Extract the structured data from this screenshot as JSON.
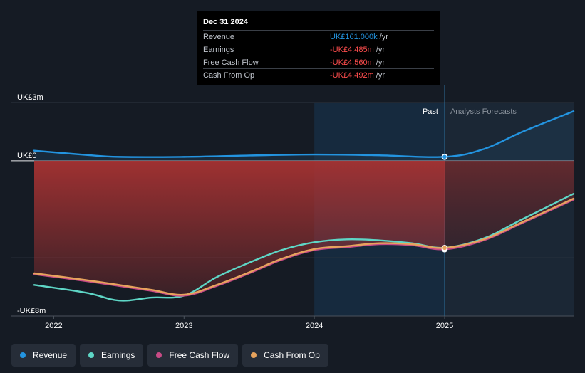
{
  "colors": {
    "revenue": "#2394e0",
    "earnings": "#5ed6c6",
    "fcf": "#c84b86",
    "cfo": "#e7a35d",
    "negative_fill": "#a63232",
    "forecast_bg": "#1b2735",
    "past_highlight": "#173047"
  },
  "tooltip": {
    "date": "Dec 31 2024",
    "rows": [
      {
        "label": "Revenue",
        "value": "UK£161.000k",
        "unit": "/yr",
        "color": "#2394e0"
      },
      {
        "label": "Earnings",
        "value": "-UK£4.485m",
        "unit": "/yr",
        "color": "#ff4d4d"
      },
      {
        "label": "Free Cash Flow",
        "value": "-UK£4.560m",
        "unit": "/yr",
        "color": "#ff4d4d"
      },
      {
        "label": "Cash From Op",
        "value": "-UK£4.492m",
        "unit": "/yr",
        "color": "#ff4d4d"
      }
    ]
  },
  "legend": [
    {
      "label": "Revenue",
      "color": "#2394e0"
    },
    {
      "label": "Earnings",
      "color": "#5ed6c6"
    },
    {
      "label": "Free Cash Flow",
      "color": "#c84b86"
    },
    {
      "label": "Cash From Op",
      "color": "#e7a35d"
    }
  ],
  "chart_data": {
    "type": "line",
    "y_tick_labels": [
      "UK£3m",
      "UK£0",
      "-UK£8m"
    ],
    "x_tick_labels": [
      "2022",
      "2023",
      "2024",
      "2025"
    ],
    "ylim": [
      -8,
      3
    ],
    "xlim": [
      2021.85,
      2025.99
    ],
    "past_label": "Past",
    "forecast_label": "Analysts Forecasts",
    "past_end_x": 2025.0,
    "highlight_start_x": 2024.0,
    "grid": true,
    "series": [
      {
        "name": "Revenue",
        "key": "revenue",
        "x": [
          2021.85,
          2022.25,
          2022.5,
          2023.0,
          2023.5,
          2024.0,
          2024.5,
          2025.0,
          2025.3,
          2025.6,
          2025.99
        ],
        "y": [
          0.52,
          0.3,
          0.2,
          0.2,
          0.27,
          0.32,
          0.28,
          0.2,
          0.6,
          1.5,
          2.55
        ]
      },
      {
        "name": "Earnings",
        "key": "earnings",
        "x": [
          2021.85,
          2022.25,
          2022.5,
          2022.75,
          2023.0,
          2023.25,
          2023.5,
          2023.75,
          2024.0,
          2024.25,
          2024.5,
          2024.75,
          2025.0,
          2025.3,
          2025.6,
          2025.99
        ],
        "y": [
          -6.4,
          -6.8,
          -7.2,
          -7.05,
          -6.95,
          -6.0,
          -5.25,
          -4.6,
          -4.2,
          -4.05,
          -4.1,
          -4.25,
          -4.48,
          -4.0,
          -3.0,
          -1.7
        ]
      },
      {
        "name": "Free Cash Flow",
        "key": "fcf",
        "x": [
          2021.85,
          2022.25,
          2022.5,
          2022.75,
          2023.0,
          2023.25,
          2023.5,
          2023.75,
          2024.0,
          2024.25,
          2024.5,
          2024.75,
          2025.0,
          2025.3,
          2025.6,
          2025.99
        ],
        "y": [
          -5.85,
          -6.2,
          -6.45,
          -6.7,
          -6.95,
          -6.45,
          -5.8,
          -5.1,
          -4.6,
          -4.45,
          -4.3,
          -4.35,
          -4.56,
          -4.1,
          -3.2,
          -2.0
        ]
      },
      {
        "name": "Cash From Op",
        "key": "cfo",
        "x": [
          2021.85,
          2022.25,
          2022.5,
          2022.75,
          2023.0,
          2023.25,
          2023.5,
          2023.75,
          2024.0,
          2024.25,
          2024.5,
          2024.75,
          2025.0,
          2025.3,
          2025.6,
          2025.99
        ],
        "y": [
          -5.8,
          -6.15,
          -6.4,
          -6.65,
          -6.9,
          -6.4,
          -5.75,
          -5.05,
          -4.55,
          -4.4,
          -4.25,
          -4.3,
          -4.49,
          -4.05,
          -3.15,
          -1.95
        ]
      }
    ]
  }
}
